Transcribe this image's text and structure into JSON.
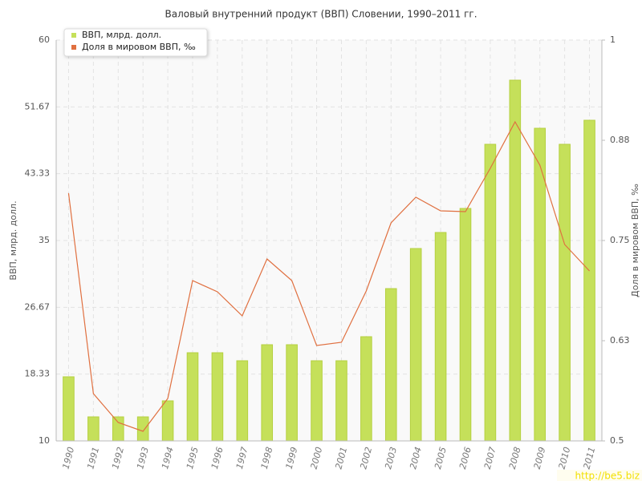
{
  "chart_data": {
    "type": "bar-line",
    "title": "Валовый внутренний продукт (ВВП) Словении, 1990–2011 гг.",
    "y_label": "ВВП, млрд. долл.",
    "y2_label": "Доля в мировом ВВП, ‰",
    "categories": [
      "1990",
      "1991",
      "1992",
      "1993",
      "1994",
      "1995",
      "1996",
      "1997",
      "1998",
      "1999",
      "2000",
      "2001",
      "2002",
      "2003",
      "2004",
      "2005",
      "2006",
      "2007",
      "2008",
      "2009",
      "2010",
      "2011"
    ],
    "series": [
      {
        "name": "ВВП, млрд. долл.",
        "type": "bar",
        "color": "#c5e05a",
        "values": [
          18,
          13,
          13,
          13,
          15,
          21,
          21,
          20,
          22,
          22,
          20,
          20,
          23,
          29,
          34,
          36,
          39,
          47,
          55,
          49,
          47,
          50
        ]
      },
      {
        "name": "Доля в мировом ВВП, ‰",
        "type": "line",
        "axis": "y2",
        "color": "#e07040",
        "values": [
          0.809,
          0.559,
          0.523,
          0.512,
          0.553,
          0.7,
          0.686,
          0.656,
          0.727,
          0.7,
          0.619,
          0.623,
          0.687,
          0.772,
          0.804,
          0.787,
          0.786,
          0.84,
          0.898,
          0.844,
          0.745,
          0.712
        ]
      }
    ],
    "ylim": [
      10,
      60
    ],
    "yticks": [
      10,
      {
        "value": 18.333,
        "label": "18.33"
      },
      {
        "value": 26.667,
        "label": "26.67"
      },
      35,
      {
        "value": 43.333,
        "label": "43.33"
      },
      {
        "value": 51.667,
        "label": "51.67"
      },
      60
    ],
    "y2lim": [
      0.5,
      1
    ],
    "y2ticks": [
      0.5,
      {
        "value": 0.625,
        "label": "0.63"
      },
      0.75,
      {
        "value": 0.875,
        "label": "0.88"
      },
      1
    ],
    "grid": true,
    "legend": "top-left",
    "watermark": "http://be5.biz"
  }
}
